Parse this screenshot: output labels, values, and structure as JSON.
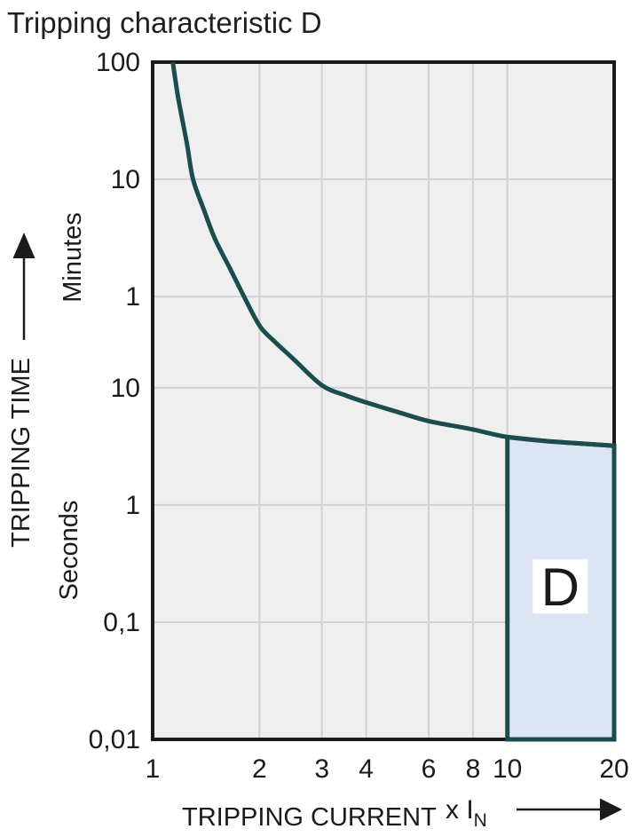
{
  "page": {
    "title": "Tripping characteristic D"
  },
  "colors": {
    "curve": "#1b4d4e",
    "region_fill": "#dce4f3",
    "region_border": "#1b4d4e",
    "plot_bg": "#efeff0",
    "grid": "#d0d0d5",
    "frame": "#1a1a1a",
    "text": "#1b1b1b",
    "label_box": "#ffffff"
  },
  "chart_data": {
    "type": "line",
    "title": "Tripping characteristic D",
    "x_axis": {
      "title": "TRIPPING CURRENT",
      "unit_prefix": "x I",
      "unit_subscript": "N",
      "scale": "log",
      "min": 1,
      "max": 20,
      "ticks": [
        {
          "label": "1",
          "value": 1
        },
        {
          "label": "2",
          "value": 2
        },
        {
          "label": "3",
          "value": 3
        },
        {
          "label": "4",
          "value": 4
        },
        {
          "label": "6",
          "value": 6
        },
        {
          "label": "8",
          "value": 8
        },
        {
          "label": "10",
          "value": 10
        },
        {
          "label": "20",
          "value": 20
        }
      ],
      "gridline_values": [
        2,
        3,
        4,
        6,
        8,
        10
      ]
    },
    "y_axis": {
      "title": "TRIPPING TIME",
      "scale": "log",
      "min_seconds": 0.01,
      "max_seconds": 6000,
      "ticks": [
        {
          "label": "100",
          "seconds": 6000,
          "unit": "minutes"
        },
        {
          "label": "10",
          "seconds": 600,
          "unit": "minutes"
        },
        {
          "label": "1",
          "seconds": 60,
          "unit": "minutes"
        },
        {
          "label": "10",
          "seconds": 10,
          "unit": "seconds"
        },
        {
          "label": "1",
          "seconds": 1,
          "unit": "seconds"
        },
        {
          "label": "0,1",
          "seconds": 0.1,
          "unit": "seconds"
        },
        {
          "label": "0,01",
          "seconds": 0.01,
          "unit": "seconds"
        }
      ],
      "unit_labels": [
        {
          "text": "Minutes",
          "center_seconds": 130
        },
        {
          "text": "Seconds",
          "center_seconds": 0.41
        }
      ],
      "gridline_values_seconds": [
        600,
        60,
        10,
        1,
        0.1
      ]
    },
    "series": [
      {
        "name": "tripping-curve",
        "points_x_multiple_t_seconds": [
          [
            1.14,
            6000
          ],
          [
            1.18,
            3000
          ],
          [
            1.25,
            1200
          ],
          [
            1.3,
            600
          ],
          [
            1.4,
            320
          ],
          [
            1.5,
            185
          ],
          [
            1.65,
            105
          ],
          [
            1.8,
            62
          ],
          [
            2.0,
            34
          ],
          [
            2.2,
            25
          ],
          [
            2.5,
            17.5
          ],
          [
            3.0,
            10.5
          ],
          [
            3.5,
            8.6
          ],
          [
            4.0,
            7.5
          ],
          [
            5.0,
            6.1
          ],
          [
            6.0,
            5.2
          ],
          [
            8.0,
            4.4
          ],
          [
            10.0,
            3.8
          ],
          [
            13.0,
            3.5
          ],
          [
            16.0,
            3.35
          ],
          [
            20.0,
            3.2
          ]
        ]
      }
    ],
    "region": {
      "label": "D",
      "x_from": 10,
      "x_to": 20,
      "t_bottom_seconds": 0.01,
      "t_top": "curve",
      "label_center": {
        "x_multiple": 14.1,
        "t_seconds": 0.2
      }
    }
  }
}
